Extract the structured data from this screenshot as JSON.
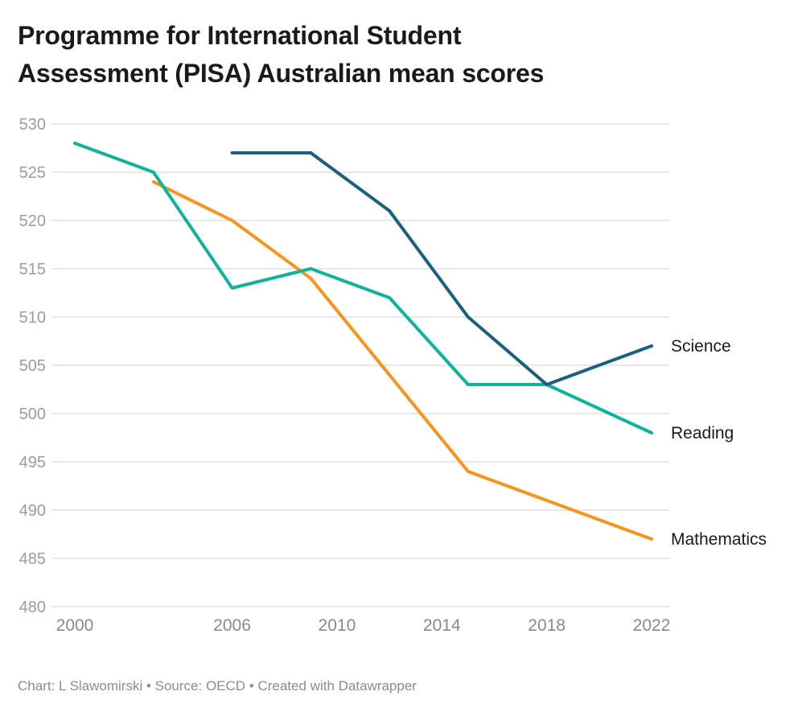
{
  "header": {
    "title_lines": [
      "Programme for International Student",
      "Assessment (PISA) Australian mean scores"
    ]
  },
  "footer": {
    "text": "Chart: L Slawomirski • Source: OECD • Created with Datawrapper"
  },
  "chart_data": {
    "type": "line",
    "title": "Programme for International Student Assessment (PISA) Australian mean scores",
    "x": [
      2000,
      2003,
      2006,
      2009,
      2012,
      2015,
      2018,
      2022
    ],
    "series": [
      {
        "name": "Mathematics",
        "color": "#f8941d",
        "values": [
          null,
          524,
          520,
          514,
          504,
          494,
          491,
          487
        ]
      },
      {
        "name": "Reading",
        "color": "#0db49b",
        "values": [
          528,
          525,
          513,
          515,
          512,
          503,
          503,
          498
        ]
      },
      {
        "name": "Science",
        "color": "#1a617f",
        "values": [
          null,
          null,
          527,
          527,
          521,
          510,
          503,
          507
        ]
      }
    ],
    "xlabel": "",
    "ylabel": "",
    "xlim": [
      2000,
      2022
    ],
    "ylim": [
      480,
      530
    ],
    "y_ticks": [
      480,
      485,
      490,
      495,
      500,
      505,
      510,
      515,
      520,
      525,
      530
    ],
    "x_ticks": [
      2000,
      2006,
      2010,
      2014,
      2018,
      2022
    ],
    "grid": "horizontal",
    "legend_position": "direct-labels-right"
  },
  "colors": {
    "background": "#ffffff",
    "title_text": "#1a1a1a",
    "series_label_text": "#1a1a1a",
    "y_tick_text": "#9c9c9c",
    "x_tick_text": "#8a8a8a",
    "gridline": "#e8e8e8",
    "footer_text": "#8c8c8c"
  }
}
